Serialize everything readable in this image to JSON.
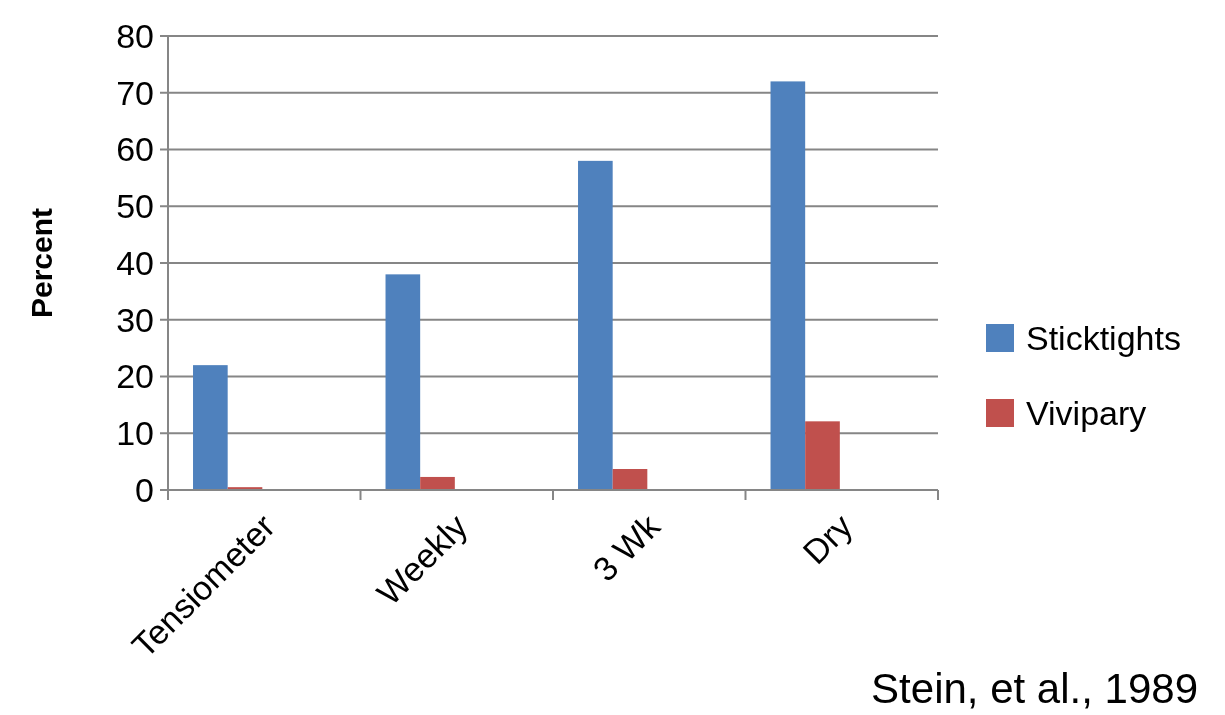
{
  "chart_data": {
    "type": "bar",
    "ylabel": "Percent",
    "categories": [
      "Tensiometer",
      "Weekly",
      "3 Wk",
      "Dry"
    ],
    "series": [
      {
        "name": "Sticktights",
        "color": "#4f81bd",
        "values": [
          22,
          38,
          58,
          72
        ]
      },
      {
        "name": "Vivipary",
        "color": "#c0504d",
        "values": [
          0.5,
          2.3,
          3.7,
          12.1
        ]
      }
    ],
    "ylim": [
      0,
      80
    ],
    "yticks": [
      0,
      10,
      20,
      30,
      40,
      50,
      60,
      70,
      80
    ],
    "grid": "y",
    "legend": "right",
    "annotations": [
      "Stein, et al., 1989"
    ]
  }
}
